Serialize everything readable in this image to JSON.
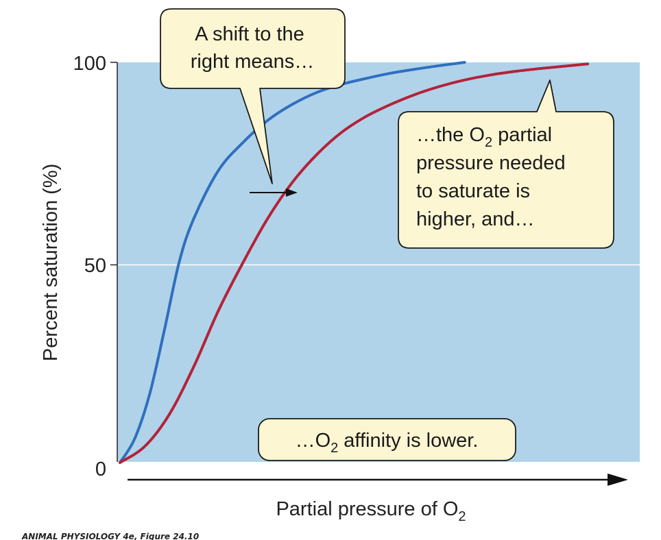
{
  "chart_data": {
    "type": "line",
    "xlabel": "Partial pressure of O",
    "xlabel_sub": "2",
    "ylabel": "Percent saturation (%)",
    "yticks": [
      "0",
      "50",
      "100"
    ],
    "ylim": [
      0,
      100
    ],
    "xlim": [
      0,
      1
    ],
    "grid": "horizontal line at 50",
    "series": [
      {
        "color": "#2f6fbf",
        "x": [
          0,
          0.03,
          0.06,
          0.09,
          0.12,
          0.15,
          0.2,
          0.25,
          0.3,
          0.35,
          0.4,
          0.45,
          0.5,
          0.55,
          0.6,
          0.65,
          0.7
        ],
        "values": [
          0,
          6,
          17,
          33,
          50,
          61,
          73,
          80,
          85.5,
          89.5,
          92.5,
          94.5,
          96,
          97.3,
          98.3,
          99.2,
          100
        ]
      },
      {
        "color": "#b3233a",
        "x": [
          0,
          0.05,
          0.1,
          0.15,
          0.2,
          0.25,
          0.3,
          0.35,
          0.4,
          0.45,
          0.5,
          0.55,
          0.6,
          0.65,
          0.7,
          0.75,
          0.8,
          0.85,
          0.9,
          0.95
        ],
        "values": [
          0,
          4,
          12,
          24,
          38,
          50,
          61,
          70,
          77,
          82.5,
          86.5,
          89.5,
          92,
          94,
          95.6,
          96.8,
          97.7,
          98.4,
          99,
          99.6
        ]
      }
    ],
    "annotations": [
      {
        "lines": [
          "A shift to the",
          "right means…"
        ]
      },
      {
        "lines": [
          "…the O|2| partial",
          "pressure needed",
          "to saturate is",
          "higher, and…"
        ]
      },
      {
        "lines": [
          "…O|2| affinity is lower."
        ]
      }
    ]
  },
  "colors": {
    "plot_background": "#b1d3e9",
    "callout_fill": "#fdf6d2",
    "axis": "#222222"
  },
  "credit": "ANIMAL PHYSIOLOGY 4e, Figure 24.10"
}
